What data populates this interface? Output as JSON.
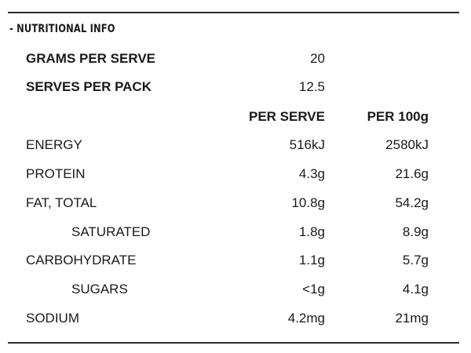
{
  "section": {
    "title": "- NUTRITIONAL INFO"
  },
  "serving": {
    "grams_label": "GRAMS PER SERVE",
    "grams_value": "20",
    "serves_label": "SERVES PER PACK",
    "serves_value": "12.5"
  },
  "columns": {
    "per_serve": "PER SERVE",
    "per_100g": "PER 100g"
  },
  "rows": [
    {
      "label": "ENERGY",
      "per_serve": "516kJ",
      "per_100g": "2580kJ"
    },
    {
      "label": "PROTEIN",
      "per_serve": "4.3g",
      "per_100g": "21.6g"
    },
    {
      "label": "FAT, TOTAL",
      "per_serve": "10.8g",
      "per_100g": "54.2g"
    },
    {
      "label": "SATURATED",
      "per_serve": "1.8g",
      "per_100g": "8.9g"
    },
    {
      "label": "CARBOHYDRATE",
      "per_serve": "1.1g",
      "per_100g": "5.7g"
    },
    {
      "label": "SUGARS",
      "per_serve": "<1g",
      "per_100g": "4.1g"
    },
    {
      "label": "SODIUM",
      "per_serve": "4.2mg",
      "per_100g": "21mg"
    }
  ]
}
